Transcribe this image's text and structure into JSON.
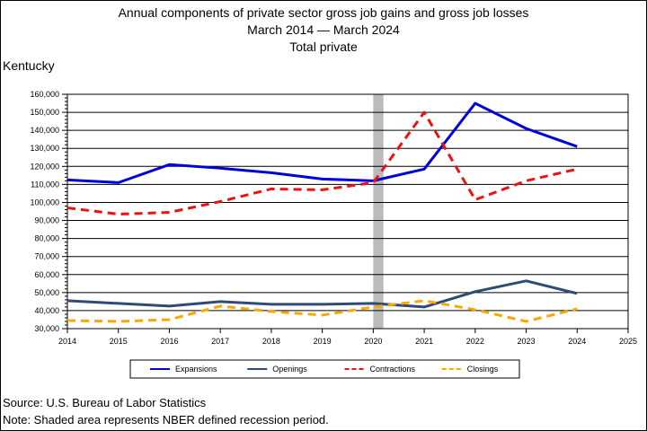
{
  "title": {
    "line1": "Annual components of private sector gross job gains and gross job losses",
    "line2": "March 2014 — March 2024",
    "line3": "Total private"
  },
  "region_label": "Kentucky",
  "footer": {
    "source": "Source: U.S. Bureau of Labor Statistics",
    "note": "Note: Shaded area represents NBER defined recession period."
  },
  "chart_data": {
    "type": "line",
    "x": [
      2014,
      2015,
      2016,
      2017,
      2018,
      2019,
      2020,
      2021,
      2022,
      2023,
      2024
    ],
    "xlim": [
      2014,
      2025
    ],
    "x_ticks": [
      "2014",
      "2015",
      "2016",
      "2017",
      "2018",
      "2019",
      "2020",
      "2021",
      "2022",
      "2023",
      "2024",
      "2025"
    ],
    "ylim": [
      30000,
      160000
    ],
    "y_ticks": [
      "30,000",
      "40,000",
      "50,000",
      "60,000",
      "70,000",
      "80,000",
      "90,000",
      "100,000",
      "110,000",
      "120,000",
      "130,000",
      "140,000",
      "150,000",
      "160,000"
    ],
    "grid": true,
    "recession_band": [
      2020,
      2020.2
    ],
    "legend_position": "bottom",
    "series": [
      {
        "name": "Expansions",
        "color": "#0000dd",
        "dash": "solid",
        "width": 3,
        "values": [
          112500,
          111000,
          121000,
          119000,
          116500,
          113000,
          112000,
          118500,
          155000,
          141000,
          131000
        ]
      },
      {
        "name": "Openings",
        "color": "#2f4b74",
        "dash": "solid",
        "width": 3,
        "values": [
          45500,
          44000,
          42500,
          45000,
          43500,
          43500,
          44000,
          42000,
          50500,
          56500,
          49500
        ]
      },
      {
        "name": "Contractions",
        "color": "#ee1111",
        "dash": "dashed",
        "width": 3,
        "values": [
          97000,
          93500,
          94500,
          100500,
          107500,
          107000,
          111000,
          150000,
          101500,
          112000,
          118500
        ]
      },
      {
        "name": "Closings",
        "color": "#ffa500",
        "dash": "dashed",
        "width": 3,
        "values": [
          34500,
          34000,
          35000,
          42500,
          39500,
          37500,
          42000,
          45500,
          40500,
          34000,
          41000
        ]
      }
    ]
  }
}
